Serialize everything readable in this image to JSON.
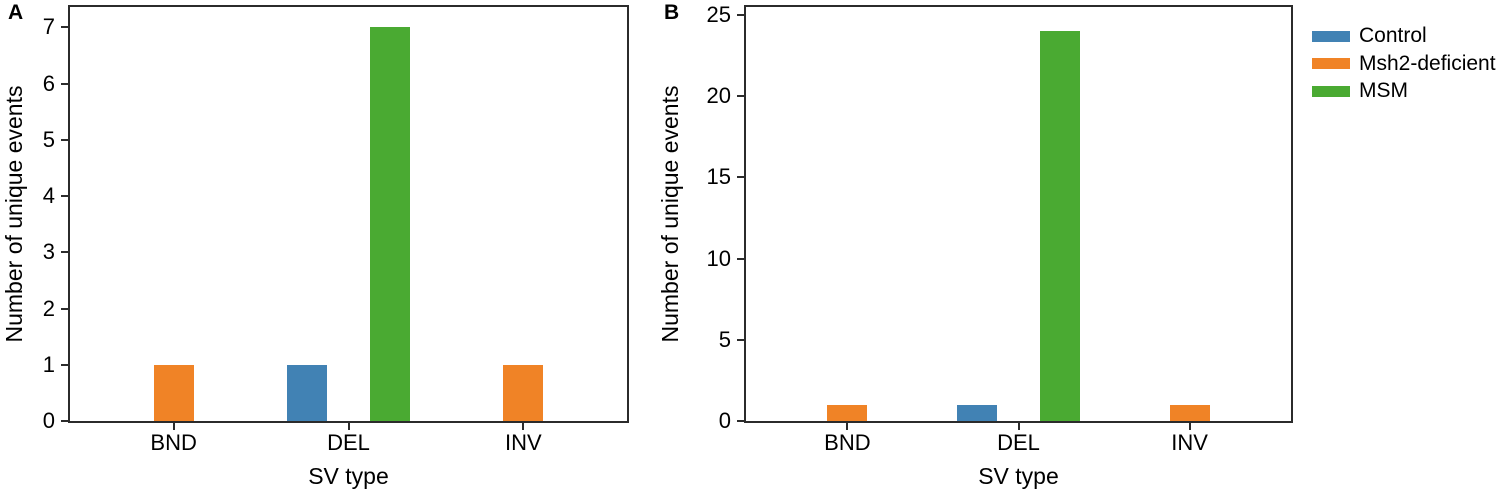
{
  "figure": {
    "background": "#ffffff",
    "axis_color": "#2b2b2b",
    "text_color": "#000000"
  },
  "legend": {
    "position": "top-right, outside axes",
    "items": [
      {
        "label": "Control",
        "color": "#4182b4"
      },
      {
        "label": "Msh2-deficient",
        "color": "#f08326"
      },
      {
        "label": "MSM",
        "color": "#4aaa32"
      }
    ]
  },
  "chart_data": [
    {
      "type": "bar",
      "panel": "A",
      "title": "",
      "categories": [
        "BND",
        "DEL",
        "INV"
      ],
      "series": [
        {
          "name": "Control",
          "color": "#4182b4",
          "values": [
            0,
            1,
            0
          ]
        },
        {
          "name": "Msh2-deficient",
          "color": "#f08326",
          "values": [
            1,
            0,
            1
          ]
        },
        {
          "name": "MSM",
          "color": "#4aaa32",
          "values": [
            0,
            7,
            0
          ]
        }
      ],
      "xlabel": "SV type",
      "ylabel": "Number of unique events",
      "yticks": [
        0,
        1,
        2,
        3,
        4,
        5,
        6,
        7
      ],
      "ylim": [
        0,
        7.4
      ],
      "grid": false
    },
    {
      "type": "bar",
      "panel": "B",
      "title": "",
      "categories": [
        "BND",
        "DEL",
        "INV"
      ],
      "series": [
        {
          "name": "Control",
          "color": "#4182b4",
          "values": [
            0,
            1,
            0
          ]
        },
        {
          "name": "Msh2-deficient",
          "color": "#f08326",
          "values": [
            1,
            0,
            1
          ]
        },
        {
          "name": "MSM",
          "color": "#4aaa32",
          "values": [
            0,
            24,
            0
          ]
        }
      ],
      "xlabel": "SV type",
      "ylabel": "Number of unique events",
      "yticks": [
        0,
        5,
        10,
        15,
        20,
        25
      ],
      "ylim": [
        0,
        25.6
      ],
      "grid": false
    }
  ]
}
